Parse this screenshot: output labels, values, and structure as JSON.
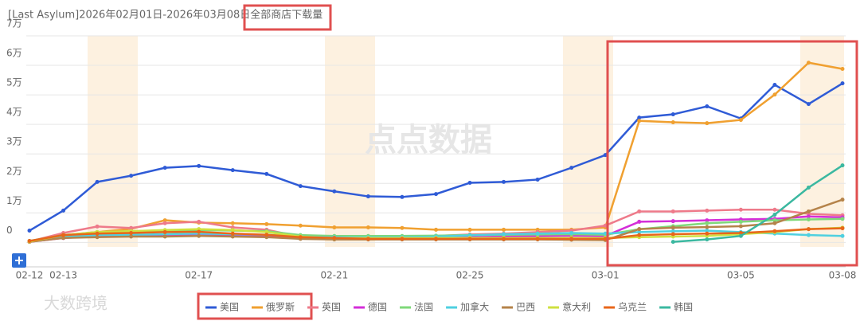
{
  "chart_data": {
    "type": "line",
    "title": "[Last Asylum]2026年02月01日-2026年03月08日全部商店下载量",
    "watermarks": [
      "点点数据",
      "大数跨境"
    ],
    "categories": [
      "02-12",
      "02-13",
      null,
      null,
      null,
      "02-17",
      null,
      null,
      null,
      "02-21",
      null,
      null,
      null,
      "02-25",
      null,
      null,
      null,
      "03-01",
      null,
      null,
      null,
      "03-05",
      null,
      null,
      "03-08"
    ],
    "ylim": [
      -8000,
      70000
    ],
    "yticks": [
      0,
      {
        "value": 10000,
        "label": "1万"
      },
      {
        "value": 20000,
        "label": "2万"
      },
      {
        "value": 30000,
        "label": "3万"
      },
      {
        "value": 40000,
        "label": "4万"
      },
      {
        "value": 50000,
        "label": "5万"
      },
      {
        "value": 60000,
        "label": "6万"
      },
      {
        "value": 70000,
        "label": "7万"
      }
    ],
    "grid": true,
    "legend": "bottom",
    "series": [
      {
        "name": "美国",
        "color": "#2f5bd6",
        "values": [
          4000,
          10800,
          20500,
          22600,
          25300,
          25900,
          24500,
          23200,
          19100,
          17300,
          15600,
          15400,
          16400,
          20200,
          20500,
          21300,
          25300,
          29600,
          42300,
          43400,
          46100,
          42000,
          53400,
          46900,
          53900
        ]
      },
      {
        "name": "俄罗斯",
        "color": "#f0a030",
        "values": [
          300,
          2400,
          3500,
          4600,
          7500,
          6700,
          6500,
          6200,
          5700,
          5100,
          5100,
          4900,
          4300,
          4300,
          4300,
          4300,
          4300,
          5100,
          41200,
          40700,
          40400,
          41500,
          50100,
          60900,
          58800
        ]
      },
      {
        "name": "英国",
        "color": "#ee7a8a",
        "values": [
          300,
          3200,
          5400,
          4900,
          6500,
          7000,
          5100,
          4300,
          1900,
          1600,
          1900,
          1900,
          2200,
          2700,
          3000,
          3500,
          4000,
          5700,
          10500,
          10500,
          10800,
          11100,
          11100,
          9700,
          9200
        ]
      },
      {
        "name": "德国",
        "color": "#d42ed8",
        "values": [
          200,
          1500,
          2000,
          2200,
          2500,
          2800,
          2500,
          2200,
          1800,
          1500,
          1500,
          1500,
          1600,
          1800,
          2000,
          2200,
          2300,
          2200,
          7000,
          7200,
          7500,
          7800,
          8000,
          8800,
          8500
        ]
      },
      {
        "name": "法国",
        "color": "#7fd87a",
        "values": [
          500,
          2500,
          3500,
          3800,
          4000,
          4200,
          4000,
          3800,
          2500,
          2200,
          2200,
          2200,
          2300,
          2500,
          2600,
          2700,
          2800,
          2600,
          4500,
          5500,
          6500,
          7000,
          7500,
          7800,
          8000
        ]
      },
      {
        "name": "加拿大",
        "color": "#4fd0e0",
        "values": [
          300,
          2000,
          2500,
          2600,
          2800,
          3000,
          2800,
          2600,
          2000,
          1800,
          1800,
          1800,
          2000,
          2400,
          2800,
          3000,
          3200,
          3000,
          3500,
          3800,
          4000,
          3500,
          3000,
          2500,
          2200
        ]
      },
      {
        "name": "巴西",
        "color": "#b5834a",
        "values": [
          200,
          1500,
          1800,
          2000,
          2000,
          2200,
          2000,
          1800,
          1200,
          1000,
          1000,
          1000,
          1000,
          1000,
          1000,
          1000,
          900,
          800,
          4500,
          5000,
          5200,
          5500,
          6500,
          10500,
          14500
        ]
      },
      {
        "name": "意大利",
        "color": "#cfe040",
        "values": [
          300,
          2500,
          3500,
          3800,
          4200,
          4500,
          4200,
          3500,
          2000,
          1500,
          1500,
          1500,
          1500,
          1500,
          1500,
          1500,
          1500,
          1500,
          1800,
          2000,
          2200,
          2800,
          3500,
          4500,
          5000
        ]
      },
      {
        "name": "乌克兰",
        "color": "#e8661a",
        "values": [
          500,
          2500,
          3000,
          3200,
          3500,
          3600,
          3000,
          2600,
          1800,
          1500,
          1200,
          1200,
          1200,
          1200,
          1200,
          1200,
          1200,
          1200,
          2500,
          2800,
          3000,
          3200,
          3800,
          4500,
          4800
        ]
      },
      {
        "name": "韩国",
        "color": "#3bb8a0",
        "values": [
          null,
          null,
          null,
          null,
          null,
          null,
          null,
          null,
          null,
          null,
          null,
          null,
          null,
          null,
          null,
          null,
          null,
          null,
          null,
          200,
          1000,
          2200,
          9400,
          18600,
          26100
        ]
      }
    ]
  }
}
